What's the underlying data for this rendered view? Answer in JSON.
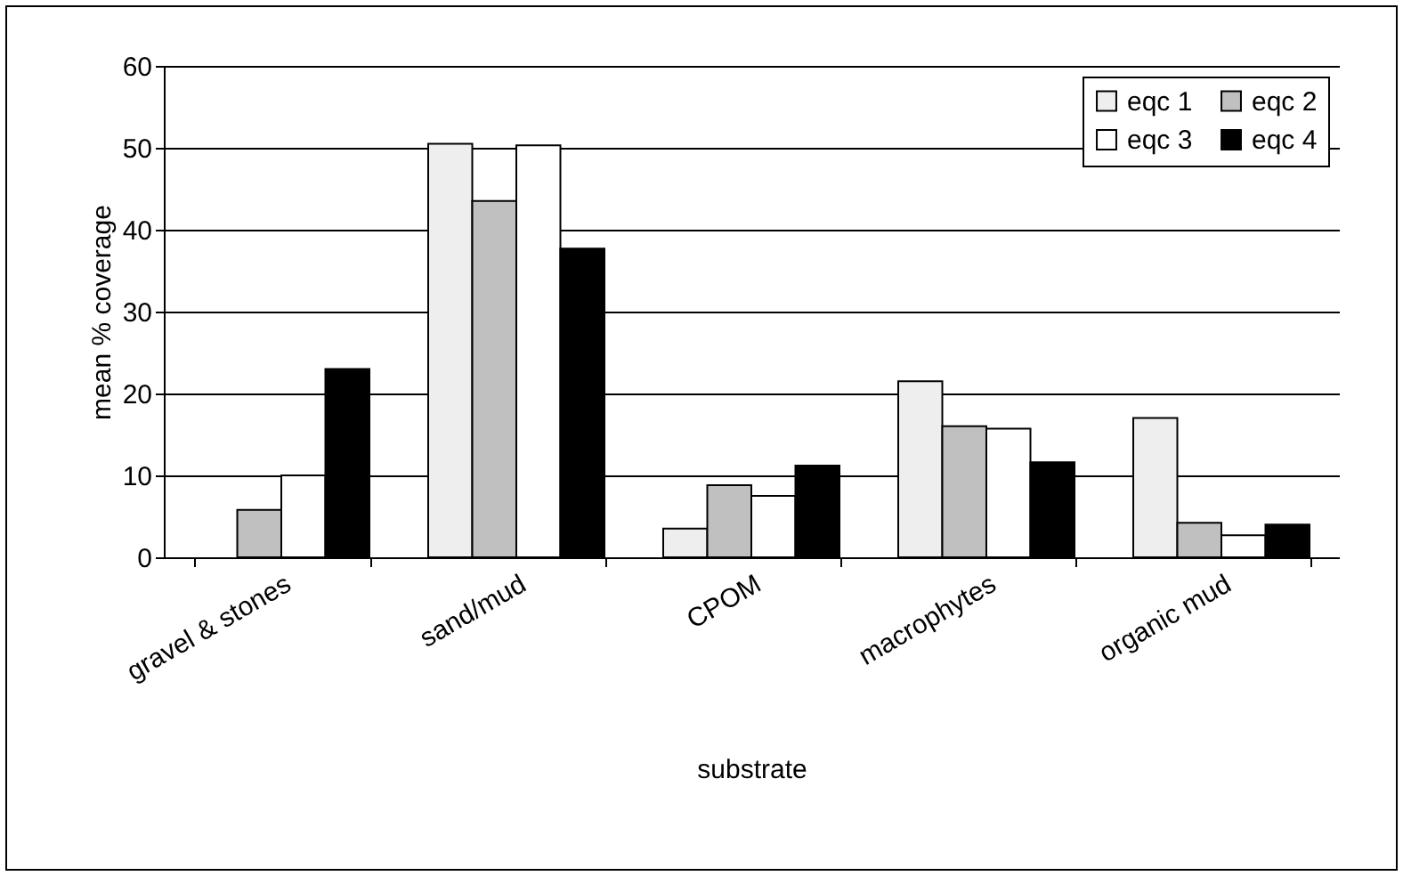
{
  "chart_data": {
    "type": "bar",
    "xlabel": "substrate",
    "ylabel": "mean % coverage",
    "categories": [
      "gravel & stones",
      "sand/mud",
      "CPOM",
      "macrophytes",
      "organic mud"
    ],
    "series": [
      {
        "name": "eqc 1",
        "color": "#eeeeee",
        "values": [
          null,
          50.5,
          3.5,
          21.5,
          17
        ]
      },
      {
        "name": "eqc 2",
        "color": "#c0c0c0",
        "values": [
          5.8,
          43.5,
          8.8,
          16,
          4.2
        ]
      },
      {
        "name": "eqc 3",
        "color": "#ffffff",
        "values": [
          10,
          50.3,
          7.5,
          15.7,
          2.7
        ]
      },
      {
        "name": "eqc 4",
        "color": "#000000",
        "values": [
          23,
          37.7,
          11.2,
          11.6,
          4
        ]
      }
    ],
    "ylim": [
      0,
      60
    ],
    "yticks": [
      0,
      10,
      20,
      30,
      40,
      50,
      60
    ],
    "grid": "y",
    "legend": "top right"
  }
}
